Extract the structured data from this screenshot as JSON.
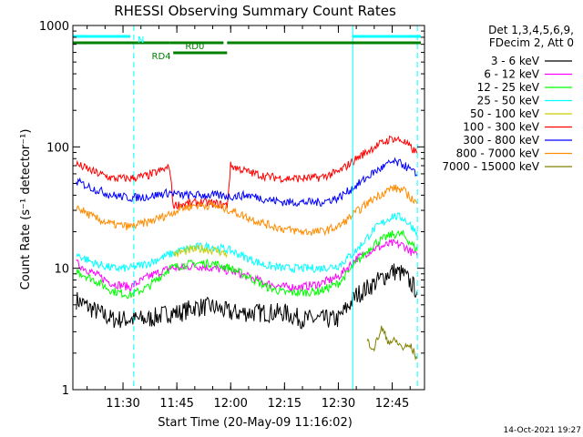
{
  "chart_data": {
    "type": "line",
    "title": "RHESSI Observing Summary Count Rates",
    "xlabel": "Start Time (20-May-09 11:16:02)",
    "ylabel": "Count Rate (s⁻¹ detector⁻¹)",
    "y_scale": "log",
    "ylim": [
      1,
      1000
    ],
    "y_ticks": [
      "1",
      "10",
      "100",
      "1000"
    ],
    "xlim": [
      "11:16:02",
      "12:54:00"
    ],
    "x_ticks": [
      "11:30",
      "11:45",
      "12:00",
      "12:15",
      "12:30",
      "12:45"
    ],
    "grid": false,
    "legend_position": "right",
    "legend_header": [
      "Det 1,3,4,5,6,9,",
      "FDecim 2, Att 0"
    ],
    "timestamp": "14-Oct-2021 19:27",
    "x_minutes_from_start_note": "",
    "state_bars": [
      {
        "label": "N",
        "color": "#00ffff",
        "segments": [
          [
            "11:16",
            "11:32"
          ],
          [
            "12:34",
            "12:53"
          ]
        ]
      },
      {
        "label": "RD0",
        "color": "#008000",
        "segments": [
          [
            "11:16",
            "11:43"
          ],
          [
            "11:43",
            "11:58"
          ],
          [
            "11:59",
            "12:53"
          ]
        ]
      },
      {
        "label": "RD4",
        "color": "#008000",
        "segments": [
          [
            "11:44",
            "11:59"
          ]
        ]
      }
    ],
    "vertical_lines": [
      {
        "time": "11:16:02",
        "color": "#00ffff",
        "style": "solid"
      },
      {
        "time": "11:33",
        "color": "#00ffff",
        "style": "dashed"
      },
      {
        "time": "12:34",
        "color": "#00ffff",
        "style": "solid"
      },
      {
        "time": "12:52",
        "color": "#00ffff",
        "style": "dashed"
      }
    ],
    "series": [
      {
        "name": "3 - 6 keV",
        "color": "#000000",
        "x": [
          "11:17",
          "11:22",
          "11:27",
          "11:32",
          "11:37",
          "11:43",
          "11:46",
          "11:50",
          "11:55",
          "12:00",
          "12:05",
          "12:10",
          "12:15",
          "12:20",
          "12:25",
          "12:30",
          "12:35",
          "12:40",
          "12:45",
          "12:48",
          "12:52"
        ],
        "values": [
          5.5,
          4.5,
          3.8,
          3.8,
          3.8,
          4.3,
          4.3,
          4.8,
          4.8,
          4.3,
          4.3,
          4.3,
          4.3,
          3.8,
          3.8,
          3.8,
          6.0,
          7.5,
          9.5,
          9.0,
          6.5
        ]
      },
      {
        "name": "6 - 12 keV",
        "color": "#ff00ff",
        "x": [
          "11:17",
          "11:22",
          "11:27",
          "11:32",
          "11:37",
          "11:43",
          "11:46",
          "11:50",
          "11:55",
          "12:00",
          "12:05",
          "12:10",
          "12:15",
          "12:20",
          "12:25",
          "12:30",
          "12:35",
          "12:40",
          "12:45",
          "12:48",
          "12:52"
        ],
        "values": [
          11,
          9,
          7.5,
          7,
          8.5,
          10,
          10,
          10.5,
          10,
          9.5,
          8.5,
          7.5,
          7,
          7,
          7.5,
          8.5,
          12,
          14.5,
          16,
          15.5,
          12.5
        ]
      },
      {
        "name": "12 - 25 keV",
        "color": "#00ff00",
        "x": [
          "11:17",
          "11:22",
          "11:27",
          "11:32",
          "11:37",
          "11:43",
          "11:46",
          "11:50",
          "11:55",
          "12:00",
          "12:05",
          "12:10",
          "12:15",
          "12:20",
          "12:25",
          "12:30",
          "12:35",
          "12:40",
          "12:45",
          "12:48",
          "12:52"
        ],
        "values": [
          9.5,
          8,
          6.5,
          6,
          7,
          10,
          10.5,
          11,
          11,
          10,
          8.5,
          7,
          6.3,
          6.3,
          6.5,
          7.5,
          11,
          16,
          19,
          19,
          14
        ]
      },
      {
        "name": "25 - 50 keV",
        "color": "#00ffff",
        "x": [
          "11:17",
          "11:22",
          "11:27",
          "11:32",
          "11:37",
          "11:43",
          "11:46",
          "11:50",
          "11:55",
          "12:00",
          "12:05",
          "12:10",
          "12:15",
          "12:20",
          "12:25",
          "12:30",
          "12:35",
          "12:40",
          "12:45",
          "12:48",
          "12:52"
        ],
        "values": [
          13,
          11,
          10,
          10,
          11,
          13,
          14,
          15,
          15,
          14,
          12,
          10.5,
          10,
          10,
          10,
          10.5,
          14,
          21,
          27,
          26,
          20
        ]
      },
      {
        "name": "50 - 100 keV",
        "color": "#cccc00",
        "x": [
          "11:44",
          "11:48",
          "11:52",
          "11:56",
          "11:59"
        ],
        "values": [
          13,
          14,
          14.5,
          14,
          13
        ]
      },
      {
        "name": "100 - 300 keV",
        "color": "#ff0000",
        "x": [
          "11:17",
          "11:22",
          "11:27",
          "11:32",
          "11:37",
          "11:43",
          "11:44",
          "11:48",
          "11:52",
          "11:56",
          "11:59",
          "12:00",
          "12:05",
          "12:10",
          "12:15",
          "12:20",
          "12:25",
          "12:30",
          "12:35",
          "12:40",
          "12:45",
          "12:48",
          "12:52"
        ],
        "values": [
          72,
          62,
          55,
          55,
          58,
          68,
          33,
          34,
          35,
          34,
          33,
          70,
          62,
          57,
          55,
          55,
          56,
          62,
          80,
          100,
          118,
          112,
          88
        ]
      },
      {
        "name": "300 - 800 keV",
        "color": "#0000ff",
        "x": [
          "11:17",
          "11:22",
          "11:27",
          "11:32",
          "11:37",
          "11:43",
          "11:46",
          "11:50",
          "11:55",
          "12:00",
          "12:05",
          "12:10",
          "12:15",
          "12:20",
          "12:25",
          "12:30",
          "12:35",
          "12:40",
          "12:45",
          "12:48",
          "12:52"
        ],
        "values": [
          52,
          45,
          40,
          38,
          39,
          42,
          40,
          40,
          40,
          39,
          40,
          37,
          35,
          35,
          35,
          38,
          48,
          62,
          75,
          72,
          58
        ]
      },
      {
        "name": "800 - 7000 keV",
        "color": "#ff8c00",
        "x": [
          "11:17",
          "11:22",
          "11:27",
          "11:32",
          "11:37",
          "11:43",
          "11:46",
          "11:50",
          "11:55",
          "12:00",
          "12:05",
          "12:10",
          "12:15",
          "12:20",
          "12:25",
          "12:30",
          "12:35",
          "12:40",
          "12:45",
          "12:48",
          "12:52"
        ],
        "values": [
          32,
          26,
          23,
          22,
          24,
          28,
          31,
          33,
          33,
          30,
          26,
          23,
          21,
          20,
          20,
          22,
          29,
          38,
          46,
          44,
          34
        ]
      },
      {
        "name": "7000 - 15000 keV",
        "color": "#808000",
        "x": [
          "12:38",
          "12:40",
          "12:42",
          "12:44",
          "12:46",
          "12:48",
          "12:50",
          "12:52"
        ],
        "values": [
          2.5,
          2.2,
          3.2,
          2.5,
          2.5,
          2.2,
          2.3,
          1.8
        ]
      }
    ]
  }
}
